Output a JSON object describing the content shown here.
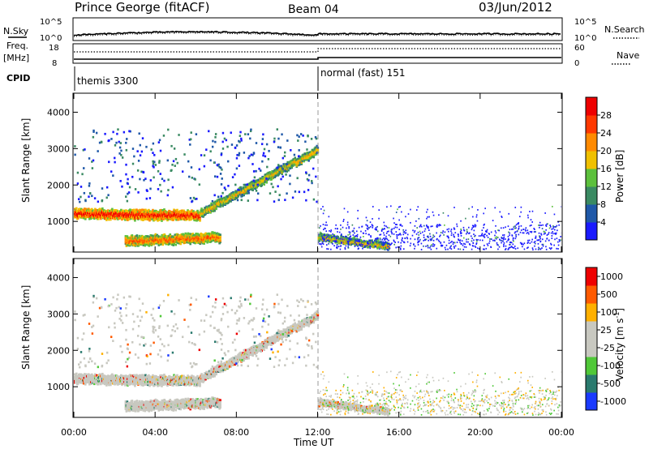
{
  "header": {
    "station": "Prince George (fitACF)",
    "beam": "Beam 04",
    "date": "03/Jun/2012"
  },
  "top_panels": {
    "nsky_label": "N.Sky",
    "nsky_ticks": [
      "10^5",
      "10^0"
    ],
    "nsearch_label": "N.Search",
    "nsearch_ticks": [
      "10^5",
      "10^0"
    ],
    "freq_label_1": "Freq.",
    "freq_label_2": "[MHz]",
    "freq_ticks": [
      "18",
      "8"
    ],
    "nave_label": "Nave",
    "nave_ticks": [
      "60",
      "0"
    ],
    "cpid_label": "CPID",
    "cpid_segments": [
      "themis 3300",
      "normal (fast) 151"
    ]
  },
  "colors": {
    "power": [
      "#1a1aff",
      "#1f58a8",
      "#3a8a62",
      "#5cc03c",
      "#f0c000",
      "#ff8a00",
      "#ff3800",
      "#ee0000"
    ],
    "velocity": [
      "#ee0000",
      "#ff5a00",
      "#ffb000",
      "#c8c8c0",
      "#c8c8c0",
      "#50c838",
      "#2a7a6e",
      "#1a3aff"
    ]
  },
  "chart_data": [
    {
      "type": "heatmap",
      "title": "Power",
      "ylabel": "Slant Range [km]",
      "colorbar_label": "Power [dB]",
      "colorbar_ticks": [
        "28",
        "24",
        "20",
        "16",
        "12",
        "8",
        "4"
      ],
      "yticks": [
        "4000",
        "3000",
        "2000",
        "1000"
      ],
      "ylim": [
        180,
        4500
      ],
      "xlim": [
        0,
        24
      ],
      "xticks": [
        "00:00",
        "04:00",
        "08:00",
        "12:00",
        "16:00",
        "20:00",
        "00:00"
      ],
      "mode_change_hour": 12.0,
      "bands": [
        {
          "t0": 0.0,
          "t1": 6.2,
          "r_start": 1200,
          "r_end": 1150,
          "width": 250,
          "level": 7
        },
        {
          "t0": 6.2,
          "t1": 12.0,
          "r_start": 1200,
          "r_end": 2950,
          "width": 200,
          "level": 5
        },
        {
          "t0": 2.5,
          "t1": 7.2,
          "r_start": 450,
          "r_end": 550,
          "width": 250,
          "level": 6
        },
        {
          "t0": 12.0,
          "t1": 15.5,
          "r_start": 550,
          "r_end": 300,
          "width": 150,
          "level": 5
        }
      ]
    },
    {
      "type": "heatmap",
      "title": "Velocity",
      "ylabel": "Slant Range [km]",
      "colorbar_label": "Velocity [m s^-1]",
      "colorbar_ticks": [
        "1000",
        "500",
        "100",
        "25",
        "-25",
        "-100",
        "-500",
        "-1000"
      ],
      "yticks": [
        "4000",
        "3000",
        "2000",
        "1000"
      ],
      "ylim": [
        180,
        4500
      ],
      "xlim": [
        0,
        24
      ],
      "xticks": [
        "00:00",
        "04:00",
        "08:00",
        "12:00",
        "16:00",
        "20:00",
        "00:00"
      ],
      "xlabel": "Time UT",
      "mode_change_hour": 12.0
    }
  ]
}
